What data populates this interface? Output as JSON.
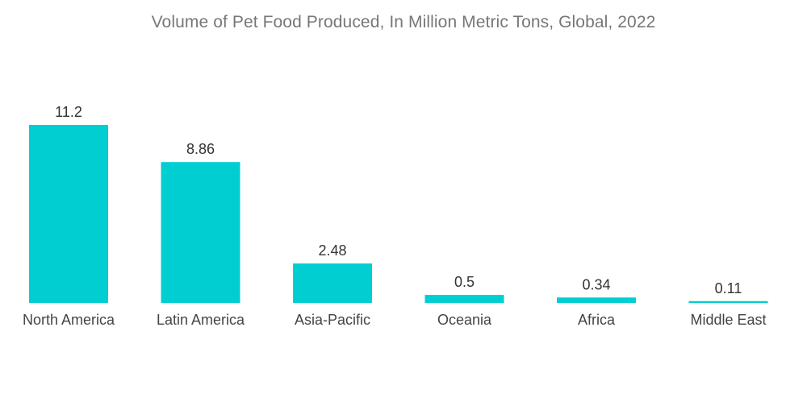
{
  "chart_data": {
    "type": "bar",
    "title": "Volume of Pet Food Produced, In Million Metric Tons, Global, 2022",
    "xlabel": "",
    "ylabel": "",
    "categories": [
      "North America",
      "Latin America",
      "Asia-Pacific",
      "Oceania",
      "Africa",
      "Middle East"
    ],
    "values": [
      11.2,
      8.86,
      2.48,
      0.5,
      0.34,
      0.11
    ],
    "value_labels": [
      "11.2",
      "8.86",
      "2.48",
      "0.5",
      "0.34",
      "0.11"
    ],
    "ylim": [
      0,
      11.2
    ],
    "grid": false,
    "legend": "none",
    "bar_color": "#00CED1"
  }
}
